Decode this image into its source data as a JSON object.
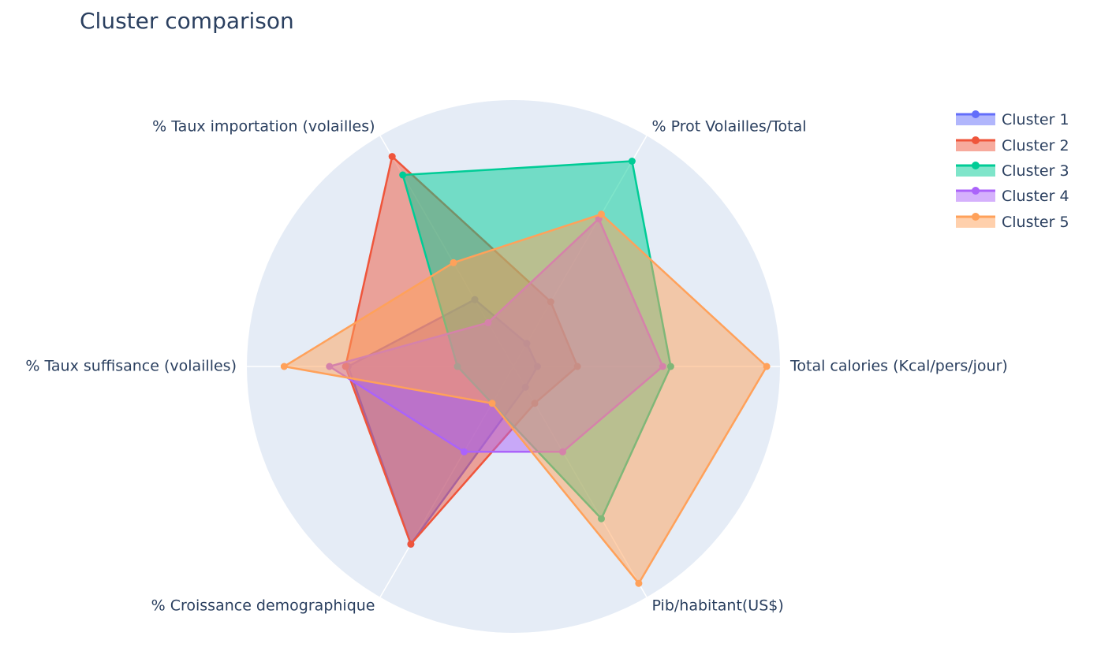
{
  "chart_data": {
    "type": "radar",
    "title": "Cluster comparison",
    "axes": [
      "Total calories (Kcal/pers/jour)",
      "% Prot Volailles/Total",
      "% Taux importation (volailles)",
      "% Taux suffisance (volailles)",
      "% Croissance demographique",
      "Pib/habitant(US$)"
    ],
    "radial_range": [
      0,
      1
    ],
    "grid": true,
    "legend_position": "top-right",
    "series": [
      {
        "name": "Cluster 1",
        "color": "#636efa",
        "values": [
          0.09,
          0.1,
          0.29,
          0.62,
          0.77,
          0.09
        ]
      },
      {
        "name": "Cluster 2",
        "color": "#ef553b",
        "values": [
          0.24,
          0.28,
          0.91,
          0.63,
          0.77,
          0.16
        ]
      },
      {
        "name": "Cluster 3",
        "color": "#00cc96",
        "values": [
          0.59,
          0.89,
          0.83,
          0.21,
          0.16,
          0.66
        ]
      },
      {
        "name": "Cluster 4",
        "color": "#ab63fa",
        "values": [
          0.56,
          0.64,
          0.19,
          0.69,
          0.37,
          0.37
        ]
      },
      {
        "name": "Cluster 5",
        "color": "#ffa15a",
        "values": [
          0.95,
          0.66,
          0.45,
          0.86,
          0.16,
          0.94
        ]
      }
    ]
  }
}
